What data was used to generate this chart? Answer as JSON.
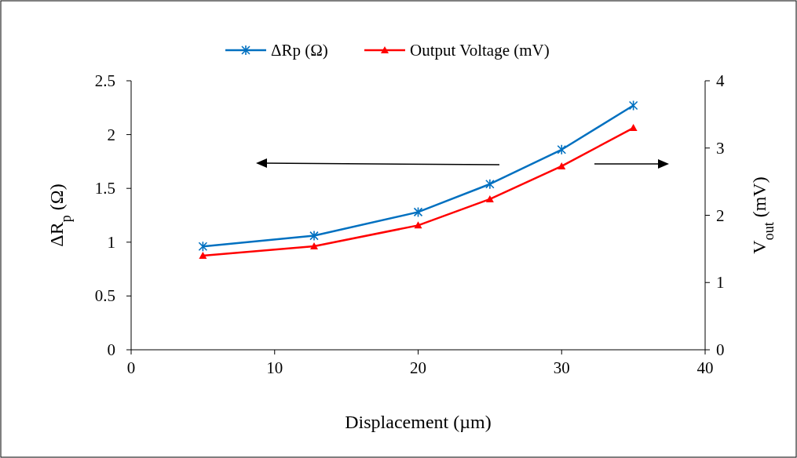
{
  "chart_data": {
    "type": "line",
    "xlabel": "Displacement (µm)",
    "ylabel": "ΔR$_{p}$ (Ω)",
    "y2label": "V$_{out}$ (mV)",
    "x": [
      5,
      12.75,
      20,
      25,
      30,
      35
    ],
    "series": [
      {
        "name": "ΔRp (Ω)",
        "color": "#0070c0",
        "marker": "cross",
        "values": [
          0.96,
          1.06,
          1.28,
          1.54,
          1.86,
          2.27
        ]
      },
      {
        "name": "Output Voltage (mV)",
        "color": "#ff0000",
        "marker": "triangle",
        "axis": "y2",
        "values": [
          1.4,
          1.54,
          1.85,
          2.24,
          2.73,
          3.3
        ]
      }
    ],
    "xlim": [
      0,
      40
    ],
    "xticks": [
      0,
      10,
      20,
      30,
      40
    ],
    "ylim": [
      0,
      2.5
    ],
    "yticks": [
      0,
      0.5,
      1,
      1.5,
      2,
      2.5
    ],
    "y2lim": [
      0,
      4
    ],
    "y2ticks": [
      0,
      1,
      2,
      3,
      4
    ],
    "grid": false,
    "legend": "top",
    "line_style": "solid"
  }
}
